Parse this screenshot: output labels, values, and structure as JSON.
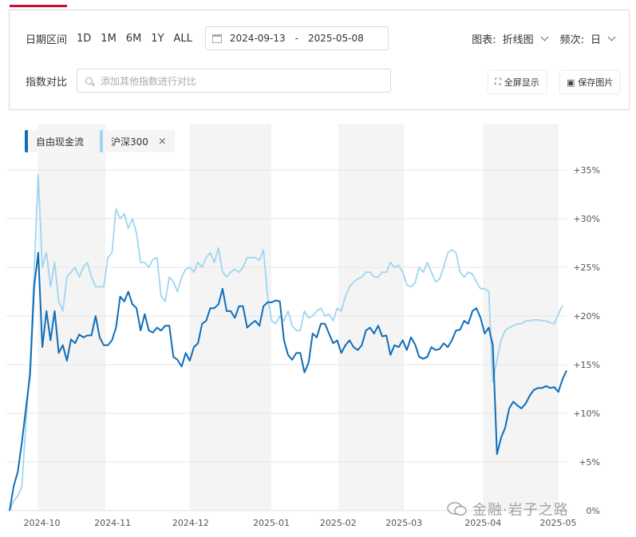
{
  "controls": {
    "date_range_label": "日期区间",
    "range_buttons": [
      "1D",
      "1M",
      "6M",
      "1Y",
      "ALL"
    ],
    "date_start": "2024-09-13",
    "date_sep": "-",
    "date_end": "2025-05-08",
    "chart_type_label": "图表:",
    "chart_type_value": "折线图",
    "frequency_label": "频次:",
    "frequency_value": "日",
    "compare_label": "指数对比",
    "compare_placeholder": "添加其他指数进行对比",
    "fullscreen_label": "全屏显示",
    "save_image_label": "保存图片"
  },
  "watermark": {
    "text": "金融·岩子之路"
  },
  "colors": {
    "series_main": "#0f6db8",
    "series_compare": "#9fd6ef",
    "accent": "#c8102e",
    "shade": "#f4f4f4",
    "grid": "#e6e6e6"
  },
  "chart_data": {
    "type": "line",
    "title": "",
    "xlabel": "",
    "ylabel": "",
    "ylim": [
      0,
      35
    ],
    "y_tick_labels": [
      "0%",
      "+5%",
      "+10%",
      "+15%",
      "+20%",
      "+25%",
      "+30%",
      "+35%"
    ],
    "x_tick_labels": [
      "2024-10",
      "2024-11",
      "2024-12",
      "2025-01",
      "2025-02",
      "2025-03",
      "2025-04",
      "2025-05"
    ],
    "legend_position": "top-left",
    "series": [
      {
        "name": "自由现金流",
        "values": [
          0,
          2.5,
          4,
          7,
          10.5,
          14,
          23,
          26.5,
          16.8,
          20.5,
          17.5,
          20.5,
          16.2,
          17,
          15.4,
          17.6,
          17.2,
          18.1,
          17.8,
          18,
          18,
          20,
          17.8,
          17,
          17,
          17.5,
          18.8,
          22,
          21.5,
          22.5,
          21.2,
          20.8,
          18.5,
          20.2,
          18.5,
          18.3,
          18.8,
          18.5,
          19,
          19,
          15.8,
          15.5,
          14.8,
          16.2,
          15.4,
          16.8,
          17.2,
          19.2,
          19.5,
          20.8,
          20.8,
          21.2,
          22.8,
          20.5,
          20.5,
          19.8,
          21,
          21,
          18.8,
          19.2,
          19.5,
          19,
          21,
          21.4,
          21.4,
          21.6,
          21.5,
          17.5,
          16,
          15.5,
          16.2,
          16.2,
          14.2,
          15.2,
          18.2,
          17.8,
          19.2,
          19.2,
          18.2,
          17.2,
          17.5,
          16.2,
          17,
          17.5,
          16.8,
          16.5,
          17,
          18.5,
          18.8,
          18.2,
          19,
          17.9,
          18,
          16,
          17,
          16.8,
          17.5,
          16.5,
          17.8,
          17.1,
          15.8,
          15.6,
          15.8,
          16.8,
          16.5,
          16.6,
          17.2,
          16.8,
          17.5,
          18.5,
          18.6,
          19.5,
          19.2,
          20.5,
          20.8,
          19.8,
          18.2,
          18.8,
          17,
          5.8,
          7.5,
          8.5,
          10.5,
          11.2,
          10.8,
          10.5,
          11,
          11.8,
          12.4,
          12.6,
          12.6,
          12.8,
          12.6,
          12.7,
          12.2,
          13.5,
          14.4
        ]
      },
      {
        "name": "沪深300",
        "values": [
          0,
          1,
          1.5,
          2.5,
          9,
          15,
          24.5,
          34.5,
          25,
          26.5,
          23,
          25.5,
          21.5,
          20.5,
          24,
          24.5,
          25,
          24,
          25,
          25.5,
          24,
          23,
          23,
          23,
          26,
          26.5,
          31,
          30,
          30.5,
          29,
          30,
          28.5,
          25.5,
          25.5,
          25,
          25.8,
          26,
          22,
          21.5,
          24,
          23.5,
          22.5,
          24,
          24.8,
          25,
          24.5,
          25.5,
          25,
          26,
          26.5,
          25.5,
          27,
          24.5,
          24,
          24.5,
          24.8,
          24.5,
          25,
          26,
          26,
          26,
          25.7,
          26.8,
          22,
          19.5,
          19.2,
          20,
          19.5,
          20.5,
          19,
          18.5,
          18.5,
          20.5,
          19.8,
          20,
          20.5,
          20.8,
          20,
          20.2,
          19.5,
          20.8,
          20.5,
          22,
          23,
          23.5,
          23.8,
          24,
          24.5,
          24.5,
          24,
          24,
          24.5,
          24.5,
          25.5,
          25,
          25.2,
          24.5,
          23.2,
          23,
          23.4,
          25,
          24.5,
          25.5,
          24.5,
          23.5,
          23.8,
          25,
          26.5,
          26.8,
          26.5,
          24.5,
          24,
          24.5,
          24.3,
          23.5,
          22.8,
          22.8,
          22.5,
          13.2,
          15.5,
          17.5,
          18.5,
          18.8,
          19,
          19.2,
          19.2,
          19.5,
          19.5,
          19.6,
          19.6,
          19.5,
          19.5,
          19.3,
          19.2,
          20.2,
          21.1
        ]
      }
    ]
  }
}
